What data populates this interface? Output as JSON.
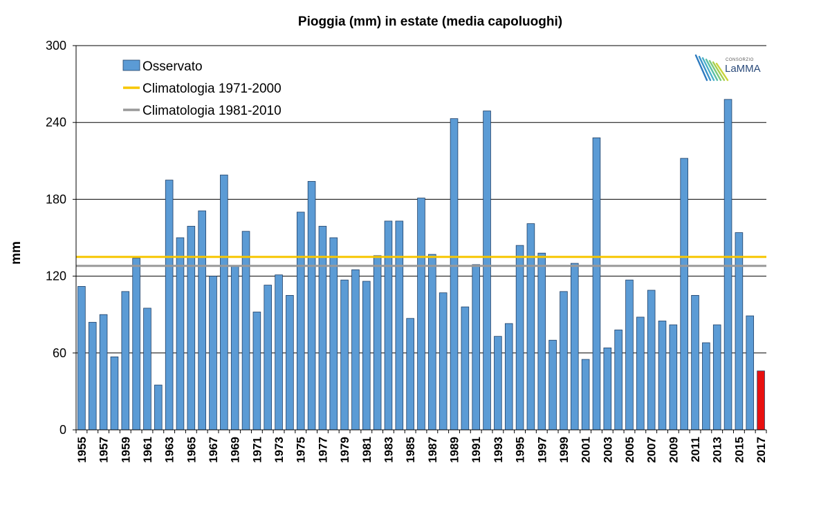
{
  "chart_data": {
    "type": "bar",
    "title": "Pioggia (mm) in estate (media capoluoghi)",
    "ylabel": "mm",
    "xlabel": "",
    "ylim": [
      0,
      300
    ],
    "yticks": [
      0,
      60,
      120,
      180,
      240,
      300
    ],
    "grid": true,
    "legend_position": "top-left",
    "x": [
      1955,
      1956,
      1957,
      1958,
      1959,
      1960,
      1961,
      1962,
      1963,
      1964,
      1965,
      1966,
      1967,
      1968,
      1969,
      1970,
      1971,
      1972,
      1973,
      1974,
      1975,
      1976,
      1977,
      1978,
      1979,
      1980,
      1981,
      1982,
      1983,
      1984,
      1985,
      1986,
      1987,
      1988,
      1989,
      1990,
      1991,
      1992,
      1993,
      1994,
      1995,
      1996,
      1997,
      1998,
      1999,
      2000,
      2001,
      2002,
      2003,
      2004,
      2005,
      2006,
      2007,
      2008,
      2009,
      2010,
      2011,
      2012,
      2013,
      2014,
      2015,
      2016,
      2017
    ],
    "x_tick_labels": [
      "1955",
      "1957",
      "1959",
      "1961",
      "1963",
      "1965",
      "1967",
      "1969",
      "1971",
      "1973",
      "1975",
      "1977",
      "1979",
      "1981",
      "1983",
      "1985",
      "1987",
      "1989",
      "1991",
      "1993",
      "1995",
      "1997",
      "1999",
      "2001",
      "2003",
      "2005",
      "2007",
      "2009",
      "2011",
      "2013",
      "2015",
      "2017"
    ],
    "series": [
      {
        "name": "Osservato",
        "color": "#5b9bd5",
        "highlight_last_color": "#e81010",
        "values": [
          112,
          84,
          90,
          57,
          108,
          134,
          95,
          35,
          195,
          150,
          159,
          171,
          120,
          199,
          128,
          155,
          92,
          113,
          121,
          105,
          170,
          194,
          159,
          150,
          117,
          125,
          116,
          136,
          163,
          163,
          87,
          181,
          137,
          107,
          243,
          96,
          129,
          249,
          73,
          83,
          144,
          161,
          138,
          70,
          108,
          130,
          55,
          228,
          64,
          78,
          117,
          88,
          109,
          85,
          82,
          212,
          105,
          68,
          82,
          258,
          154,
          89,
          46
        ]
      }
    ],
    "reference_lines": [
      {
        "name": "Climatologia 1971-2000",
        "value": 135,
        "color": "#f7c600"
      },
      {
        "name": "Climatologia 1981-2010",
        "value": 128,
        "color": "#999999"
      }
    ],
    "logo": {
      "small_text": "CONSORZIO",
      "big_text": "LaMMA"
    }
  }
}
